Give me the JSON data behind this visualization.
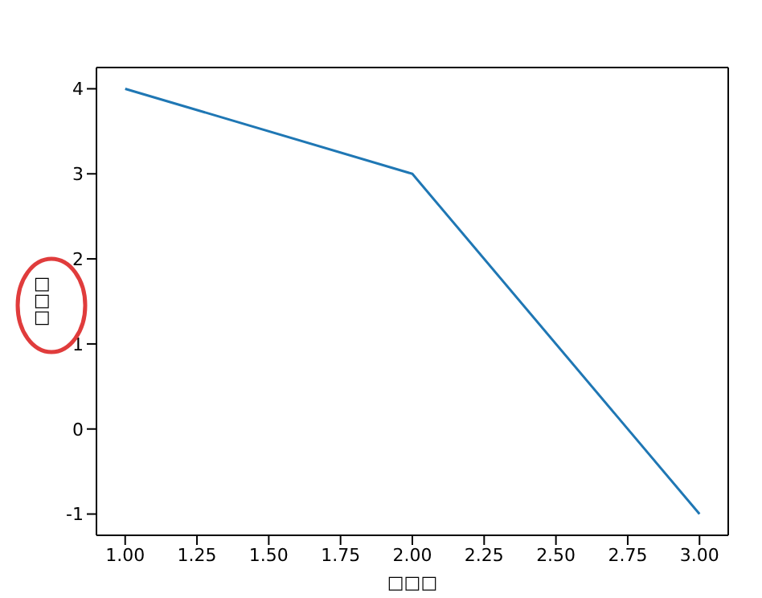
{
  "chart_data": {
    "type": "line",
    "xlabel": "□□□",
    "ylabel": "□□□",
    "x": [
      1,
      2,
      3
    ],
    "series": [
      {
        "color": "#1f77b4",
        "values": [
          4,
          3,
          -1
        ]
      }
    ],
    "xlim": [
      0.9,
      3.1
    ],
    "xticks": [
      {
        "value": 1,
        "label": "1.00"
      },
      {
        "value": 1.25,
        "label": "1.25"
      },
      {
        "value": 1.5,
        "label": "1.50"
      },
      {
        "value": 1.75,
        "label": "1.75"
      },
      {
        "value": 2,
        "label": "2.00"
      },
      {
        "value": 2.25,
        "label": "2.25"
      },
      {
        "value": 2.5,
        "label": "2.50"
      },
      {
        "value": 2.75,
        "label": "2.75"
      },
      {
        "value": 3,
        "label": "3.00"
      }
    ],
    "ylim": [
      -1.25,
      4.25
    ],
    "yticks": [
      -1,
      0,
      1,
      2,
      3,
      4
    ],
    "grid": false,
    "marker": "none",
    "line_style": "solid"
  }
}
